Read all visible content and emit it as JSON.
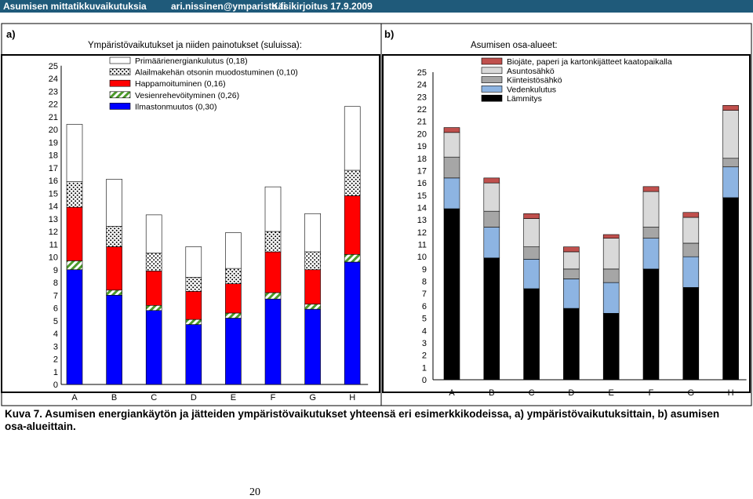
{
  "header": {
    "left": "Asumisen mittatikkuvaikutuksia",
    "email": "ari.nissinen@ymparisto.fi",
    "manuscript": "Käsikirjoitus 17.9.2009"
  },
  "colors": {
    "header_bg": "#1f5a7a",
    "plot_bg": "#c0c0c0",
    "primaari": "#ffffff",
    "alailmakehan": "#ffffff",
    "happamoituminen": "#ff0000",
    "vesien": "#ffffff",
    "ilmasto": "#0000ff",
    "biojate": "#c0504d",
    "asuntosahko": "#d9d9d9",
    "kiinteistosahko": "#a6a6a6",
    "vedenkulutus": "#8db4e2",
    "lammitys": "#000000"
  },
  "panel_a": {
    "label": "a)",
    "title": "Ympäristövaikutukset  ja niiden painotukset  (suluissa):"
  },
  "panel_b": {
    "label": "b)",
    "title": "Asumisen osa-alueet:"
  },
  "caption": "Kuva 7. Asumisen energiankäytön ja jätteiden ympäristövaikutukset yhteensä eri esimerkkikodeissa, a) ympäristövaikutuksittain, b) asumisen osa-alueittain.",
  "page_number": "20",
  "chart_data": [
    {
      "type": "bar",
      "stacked": true,
      "title": "Ympäristövaikutukset  ja niiden painotukset  (suluissa):",
      "categories": [
        "A",
        "B",
        "C",
        "D",
        "E",
        "F",
        "G",
        "H"
      ],
      "ylim": [
        0,
        25
      ],
      "yticks": [
        "0",
        "1",
        "2",
        "3",
        "4",
        "5",
        "6",
        "7",
        "8",
        "9",
        "10",
        "11",
        "12",
        "13",
        "14",
        "15",
        "16",
        "17",
        "18",
        "19",
        "20",
        "21",
        "22",
        "23",
        "24",
        "25"
      ],
      "legend_position": "top-left",
      "series": [
        {
          "name": "Ilmastonmuutos (0,30)",
          "key": "ilmasto",
          "pattern": "solid",
          "values": [
            9.0,
            7.0,
            5.8,
            4.7,
            5.2,
            6.7,
            5.9,
            9.6
          ]
        },
        {
          "name": "Vesienrehevöityminen (0,26)",
          "key": "vesien",
          "pattern": "diagonal",
          "values": [
            0.7,
            0.4,
            0.4,
            0.4,
            0.4,
            0.5,
            0.4,
            0.6
          ]
        },
        {
          "name": "Happamoituminen (0,16)",
          "key": "happamoituminen",
          "pattern": "solid",
          "values": [
            4.2,
            3.4,
            2.7,
            2.2,
            2.3,
            3.2,
            2.7,
            4.6
          ]
        },
        {
          "name": "Alailmakehän otsonin muodostuminen (0,10)",
          "key": "alailmakehan",
          "pattern": "dots",
          "values": [
            2.0,
            1.6,
            1.4,
            1.1,
            1.2,
            1.6,
            1.4,
            2.0
          ]
        },
        {
          "name": "Primäärienergiankulutus (0,18)",
          "key": "primaari",
          "pattern": "solid",
          "values": [
            4.5,
            3.7,
            3.0,
            2.4,
            2.8,
            3.5,
            3.0,
            5.0
          ]
        }
      ],
      "legend_order": [
        "primaari",
        "alailmakehan",
        "happamoituminen",
        "vesien",
        "ilmasto"
      ]
    },
    {
      "type": "bar",
      "stacked": true,
      "title": "Asumisen osa-alueet:",
      "categories": [
        "A",
        "B",
        "C",
        "D",
        "E",
        "F",
        "G",
        "H"
      ],
      "ylim": [
        0,
        25
      ],
      "yticks": [
        "0",
        "1",
        "2",
        "3",
        "4",
        "5",
        "6",
        "7",
        "8",
        "9",
        "10",
        "11",
        "12",
        "13",
        "14",
        "15",
        "16",
        "17",
        "18",
        "19",
        "20",
        "21",
        "22",
        "23",
        "24",
        "25"
      ],
      "legend_position": "top-right",
      "series": [
        {
          "name": "Lämmitys",
          "key": "lammitys",
          "values": [
            13.9,
            9.9,
            7.4,
            5.8,
            5.4,
            9.0,
            7.5,
            14.8
          ]
        },
        {
          "name": "Vedenkulutus",
          "key": "vedenkulutus",
          "values": [
            2.5,
            2.5,
            2.4,
            2.4,
            2.5,
            2.5,
            2.5,
            2.5
          ]
        },
        {
          "name": "Kiinteistösähkö",
          "key": "kiinteistosahko",
          "values": [
            1.7,
            1.3,
            1.0,
            0.8,
            1.1,
            0.9,
            1.1,
            0.7
          ]
        },
        {
          "name": "Asuntosähkö",
          "key": "asuntosahko",
          "values": [
            2.0,
            2.3,
            2.3,
            1.4,
            2.5,
            2.9,
            2.1,
            3.9
          ]
        },
        {
          "name": "Biojäte, paperi ja kartonkijätteet kaatopaikalla",
          "key": "biojate",
          "values": [
            0.4,
            0.4,
            0.4,
            0.4,
            0.3,
            0.4,
            0.4,
            0.4
          ]
        }
      ],
      "legend_order": [
        "biojate",
        "asuntosahko",
        "kiinteistosahko",
        "vedenkulutus",
        "lammitys"
      ]
    }
  ]
}
